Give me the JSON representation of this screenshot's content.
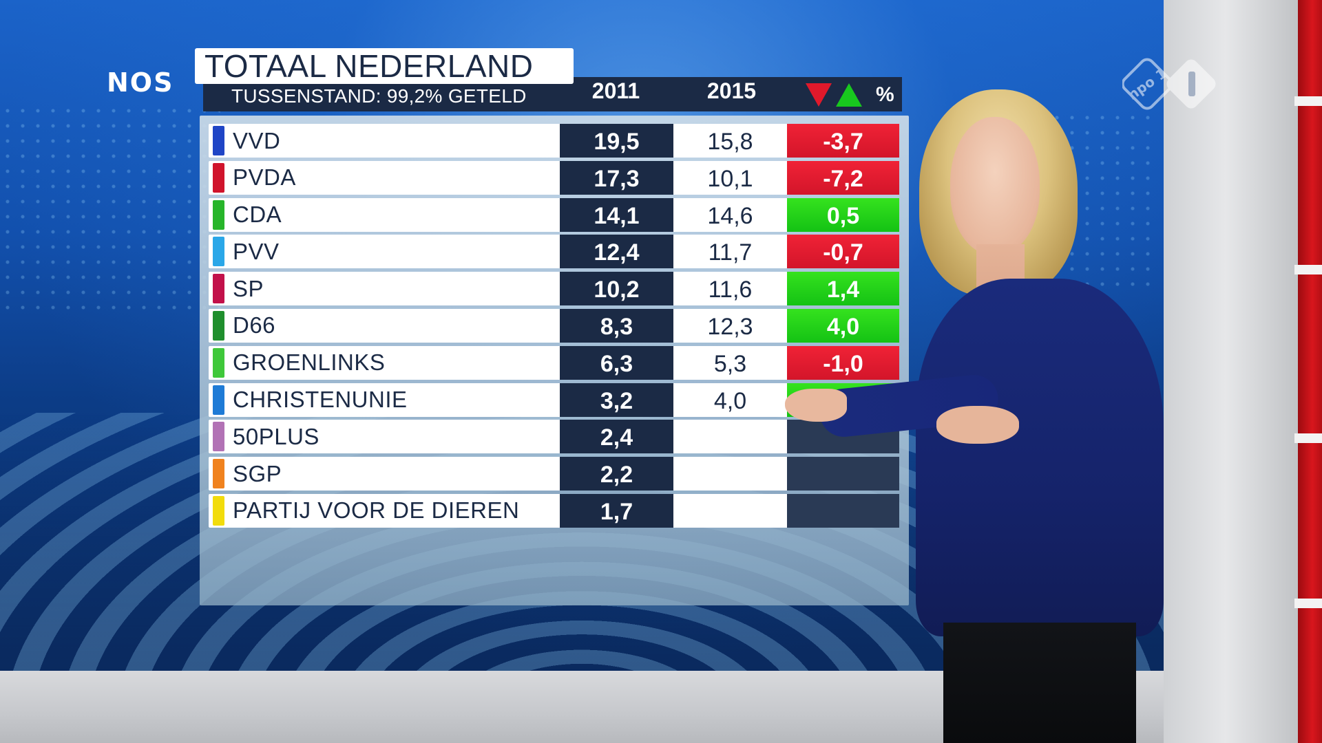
{
  "broadcast": {
    "channel_logo": "NOS",
    "network_logo": "npo 1",
    "network_logo_icon": "npo-1-logo-icon"
  },
  "board": {
    "title": "TOTAAL NEDERLAND",
    "subtitle": "TUSSENSTAND: 99,2% GETELD",
    "columns": {
      "year_a": "2011",
      "year_b": "2015",
      "change_unit": "%"
    },
    "change_icons": [
      "triangle-down-icon",
      "triangle-up-icon"
    ],
    "colors": {
      "negative": "#e0192b",
      "positive": "#18c81e",
      "header": "#1b2a45"
    },
    "rows": [
      {
        "party": "VVD",
        "color": "#1f45c6",
        "v2011": "19,5",
        "v2015": "15,8",
        "delta": "-3,7",
        "sign": "neg"
      },
      {
        "party": "PVDA",
        "color": "#d0142c",
        "v2011": "17,3",
        "v2015": "10,1",
        "delta": "-7,2",
        "sign": "neg"
      },
      {
        "party": "CDA",
        "color": "#27b52a",
        "v2011": "14,1",
        "v2015": "14,6",
        "delta": "0,5",
        "sign": "pos"
      },
      {
        "party": "PVV",
        "color": "#2aa7e8",
        "v2011": "12,4",
        "v2015": "11,7",
        "delta": "-0,7",
        "sign": "neg"
      },
      {
        "party": "SP",
        "color": "#c2114a",
        "v2011": "10,2",
        "v2015": "11,6",
        "delta": "1,4",
        "sign": "pos"
      },
      {
        "party": "D66",
        "color": "#1f8f2d",
        "v2011": "8,3",
        "v2015": "12,3",
        "delta": "4,0",
        "sign": "pos"
      },
      {
        "party": "GROENLINKS",
        "color": "#3fc83a",
        "v2011": "6,3",
        "v2015": "5,3",
        "delta": "-1,0",
        "sign": "neg"
      },
      {
        "party": "CHRISTENUNIE",
        "color": "#1e7bd6",
        "v2011": "3,2",
        "v2015": "4,0",
        "delta": "",
        "sign": "pos"
      },
      {
        "party": "50PLUS",
        "color": "#b272b5",
        "v2011": "2,4",
        "v2015": "",
        "delta": "",
        "sign": "none"
      },
      {
        "party": "SGP",
        "color": "#f0821e",
        "v2011": "2,2",
        "v2015": "",
        "delta": "",
        "sign": "none"
      },
      {
        "party": "PARTIJ VOOR DE DIEREN",
        "color": "#f2dc0c",
        "v2011": "1,7",
        "v2015": "",
        "delta": "",
        "sign": "none"
      }
    ]
  }
}
